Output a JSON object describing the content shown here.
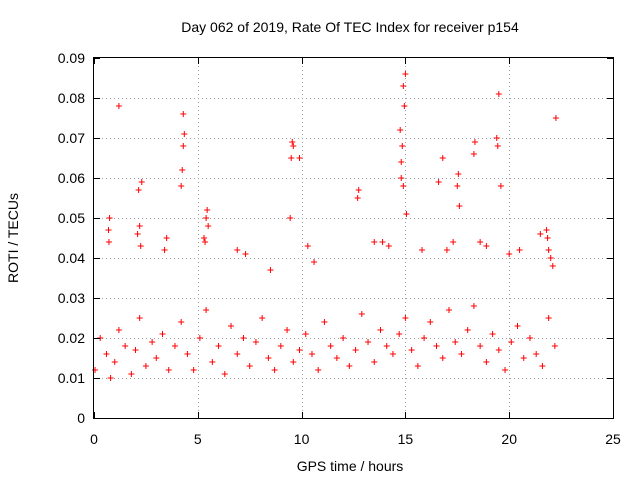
{
  "chart_data": {
    "type": "scatter",
    "title": "Day 062 of 2019, Rate Of TEC Index for receiver p154",
    "xlabel": "GPS time / hours",
    "ylabel": "ROTI / TECUs",
    "xlim": [
      0,
      25
    ],
    "ylim": [
      0,
      0.09
    ],
    "x_ticks": [
      0,
      5,
      10,
      15,
      20,
      25
    ],
    "x_tick_labels": [
      "0",
      "5",
      "10",
      "15",
      "20",
      "25"
    ],
    "y_ticks": [
      0,
      0.01,
      0.02,
      0.03,
      0.04,
      0.05,
      0.06,
      0.07,
      0.08,
      0.09
    ],
    "y_tick_labels": [
      "0",
      "0.01",
      "0.02",
      "0.03",
      "0.04",
      "0.05",
      "0.06",
      "0.07",
      "0.08",
      "0.09"
    ],
    "grid": true,
    "marker": "+",
    "color": "#ff0000",
    "series": [
      {
        "name": "ROTI",
        "x": [
          0.05,
          0.3,
          0.6,
          0.8,
          1.0,
          1.2,
          1.5,
          1.8,
          2.0,
          2.2,
          2.5,
          2.8,
          3.0,
          3.3,
          3.6,
          3.9,
          4.2,
          4.5,
          4.8,
          5.1,
          5.4,
          5.7,
          6.0,
          6.3,
          6.6,
          6.9,
          7.2,
          7.5,
          7.8,
          8.1,
          8.4,
          8.7,
          9.0,
          9.3,
          9.6,
          9.9,
          10.2,
          10.5,
          10.8,
          11.1,
          11.4,
          11.7,
          12.0,
          12.3,
          12.6,
          12.9,
          13.2,
          13.5,
          13.8,
          14.1,
          14.4,
          14.7,
          15.0,
          15.3,
          15.6,
          15.9,
          16.2,
          16.5,
          16.8,
          17.1,
          17.4,
          17.7,
          18.0,
          18.3,
          18.6,
          18.9,
          19.2,
          19.5,
          19.8,
          20.1,
          20.4,
          20.7,
          21.0,
          21.3,
          21.6,
          21.9,
          22.2,
          0.7,
          0.75,
          0.72,
          2.1,
          2.15,
          2.2,
          3.4,
          3.5,
          4.2,
          4.25,
          4.3,
          4.35,
          4.3,
          5.3,
          5.4,
          5.45,
          5.5,
          5.35,
          9.5,
          9.55,
          9.6,
          9.45,
          9.9,
          10.3,
          12.7,
          12.75,
          13.5,
          14.8,
          14.85,
          14.9,
          14.75,
          14.8,
          14.9,
          15.0,
          14.95,
          15.05,
          16.8,
          17.5,
          17.55,
          17.6,
          18.3,
          18.35,
          19.4,
          19.45,
          19.5,
          19.6,
          21.8,
          21.85,
          21.9,
          22.0,
          22.25,
          1.2,
          2.3,
          2.25,
          6.9,
          7.3,
          8.5,
          10.6,
          13.9,
          14.2,
          15.8,
          16.6,
          17.0,
          17.3,
          18.6,
          18.9,
          20.0,
          20.5,
          21.5,
          22.1
        ],
        "y": [
          0.012,
          0.02,
          0.016,
          0.01,
          0.014,
          0.022,
          0.018,
          0.011,
          0.017,
          0.025,
          0.013,
          0.019,
          0.015,
          0.021,
          0.012,
          0.018,
          0.024,
          0.016,
          0.012,
          0.02,
          0.027,
          0.014,
          0.018,
          0.011,
          0.023,
          0.016,
          0.02,
          0.013,
          0.019,
          0.025,
          0.015,
          0.012,
          0.018,
          0.022,
          0.014,
          0.017,
          0.021,
          0.016,
          0.012,
          0.024,
          0.018,
          0.015,
          0.02,
          0.013,
          0.017,
          0.026,
          0.019,
          0.014,
          0.022,
          0.018,
          0.016,
          0.021,
          0.025,
          0.017,
          0.013,
          0.02,
          0.024,
          0.018,
          0.015,
          0.027,
          0.019,
          0.016,
          0.022,
          0.028,
          0.018,
          0.014,
          0.021,
          0.017,
          0.012,
          0.019,
          0.023,
          0.015,
          0.02,
          0.016,
          0.013,
          0.025,
          0.018,
          0.047,
          0.05,
          0.044,
          0.046,
          0.057,
          0.048,
          0.042,
          0.045,
          0.058,
          0.062,
          0.068,
          0.071,
          0.076,
          0.045,
          0.05,
          0.052,
          0.048,
          0.044,
          0.065,
          0.069,
          0.068,
          0.05,
          0.065,
          0.043,
          0.055,
          0.057,
          0.044,
          0.064,
          0.068,
          0.083,
          0.072,
          0.06,
          0.058,
          0.086,
          0.078,
          0.051,
          0.065,
          0.058,
          0.061,
          0.053,
          0.066,
          0.069,
          0.07,
          0.068,
          0.081,
          0.058,
          0.047,
          0.045,
          0.042,
          0.04,
          0.075,
          0.078,
          0.059,
          0.043,
          0.042,
          0.041,
          0.037,
          0.039,
          0.044,
          0.043,
          0.042,
          0.059,
          0.042,
          0.044,
          0.044,
          0.043,
          0.041,
          0.042,
          0.046,
          0.038
        ]
      }
    ]
  }
}
